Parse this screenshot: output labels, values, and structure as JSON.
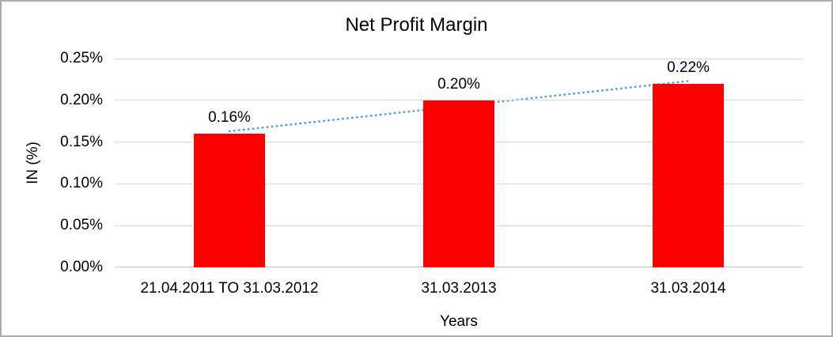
{
  "chart_data": {
    "type": "bar",
    "title": "Net Profit Margin",
    "categories": [
      "21.04.2011 TO 31.03.2012",
      "31.03.2013",
      "31.03.2014"
    ],
    "values": [
      0.16,
      0.2,
      0.22
    ],
    "data_labels": [
      "0.16%",
      "0.20%",
      "0.22%"
    ],
    "xlabel": "Years",
    "ylabel": "IN (%)",
    "ylim": [
      0,
      0.25
    ],
    "yticks": [
      0,
      0.05,
      0.1,
      0.15,
      0.2,
      0.25
    ],
    "ytick_labels": [
      "0.00%",
      "0.05%",
      "0.10%",
      "0.15%",
      "0.20%",
      "0.25%"
    ],
    "grid": true,
    "legend": "none",
    "bar_color": "#ff0000",
    "trendline": {
      "type": "linear",
      "style": "dotted",
      "color": "#5b9bd5",
      "start_value": 0.163,
      "end_value": 0.223
    }
  },
  "colors": {
    "background": "#ffffff",
    "border": "#ababab",
    "gridline": "#d9d9d9",
    "axis_line": "#c3c3c3",
    "text": "#000000"
  }
}
